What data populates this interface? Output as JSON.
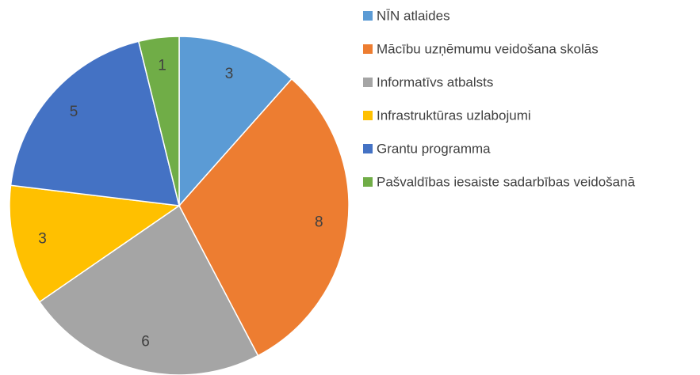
{
  "chart_data": {
    "type": "pie",
    "categories": [
      "NĪN atlaides",
      "Mācību uzņēmumu veidošana skolās",
      "Informatīvs atbalsts",
      "Infrastruktūras uzlabojumi",
      "Grantu programma",
      "Pašvaldības iesaiste sadarbības veidošanā"
    ],
    "values": [
      3,
      8,
      6,
      3,
      5,
      1
    ],
    "colors": [
      "#5b9bd5",
      "#ed7d31",
      "#a5a5a5",
      "#ffc000",
      "#4472c4",
      "#70ad47"
    ],
    "legend": "right"
  }
}
